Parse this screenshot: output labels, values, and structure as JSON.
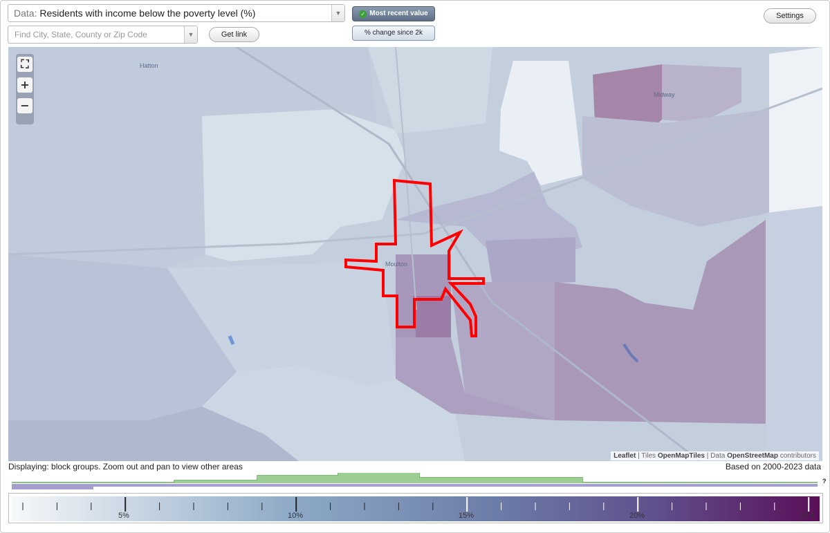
{
  "header": {
    "data_prefix": "Data:",
    "data_value": "Residents with income below the poverty level (%)",
    "find_placeholder": "Find City, State, County or Zip Code",
    "get_link_label": "Get link",
    "settings_label": "Settings",
    "toggle_recent": "Most recent value",
    "toggle_change": "% change since 2k"
  },
  "map": {
    "zoom_fit_label": "⛶",
    "zoom_in_label": "+",
    "zoom_out_label": "−",
    "places": [
      "Hatton",
      "Midway",
      "Moulton"
    ],
    "attribution": {
      "leaflet": "Leaflet",
      "sep1": "| Tiles",
      "tiles": "OpenMapTiles",
      "sep2": "| Data",
      "data": "OpenStreetMap",
      "suffix": "contributors"
    },
    "highlight_color": "#ff0000"
  },
  "footer": {
    "display_note": "Displaying: block groups. Zoom out and pan to view other areas",
    "data_range": "Based on 2000-2023 data",
    "help": "?"
  },
  "legend": {
    "tick_labels": [
      "5%",
      "10%",
      "15%",
      "20%",
      "25%"
    ],
    "color_low": "#f4f7fa",
    "color_mid": "#7a90b8",
    "color_high": "#5a0f58"
  }
}
